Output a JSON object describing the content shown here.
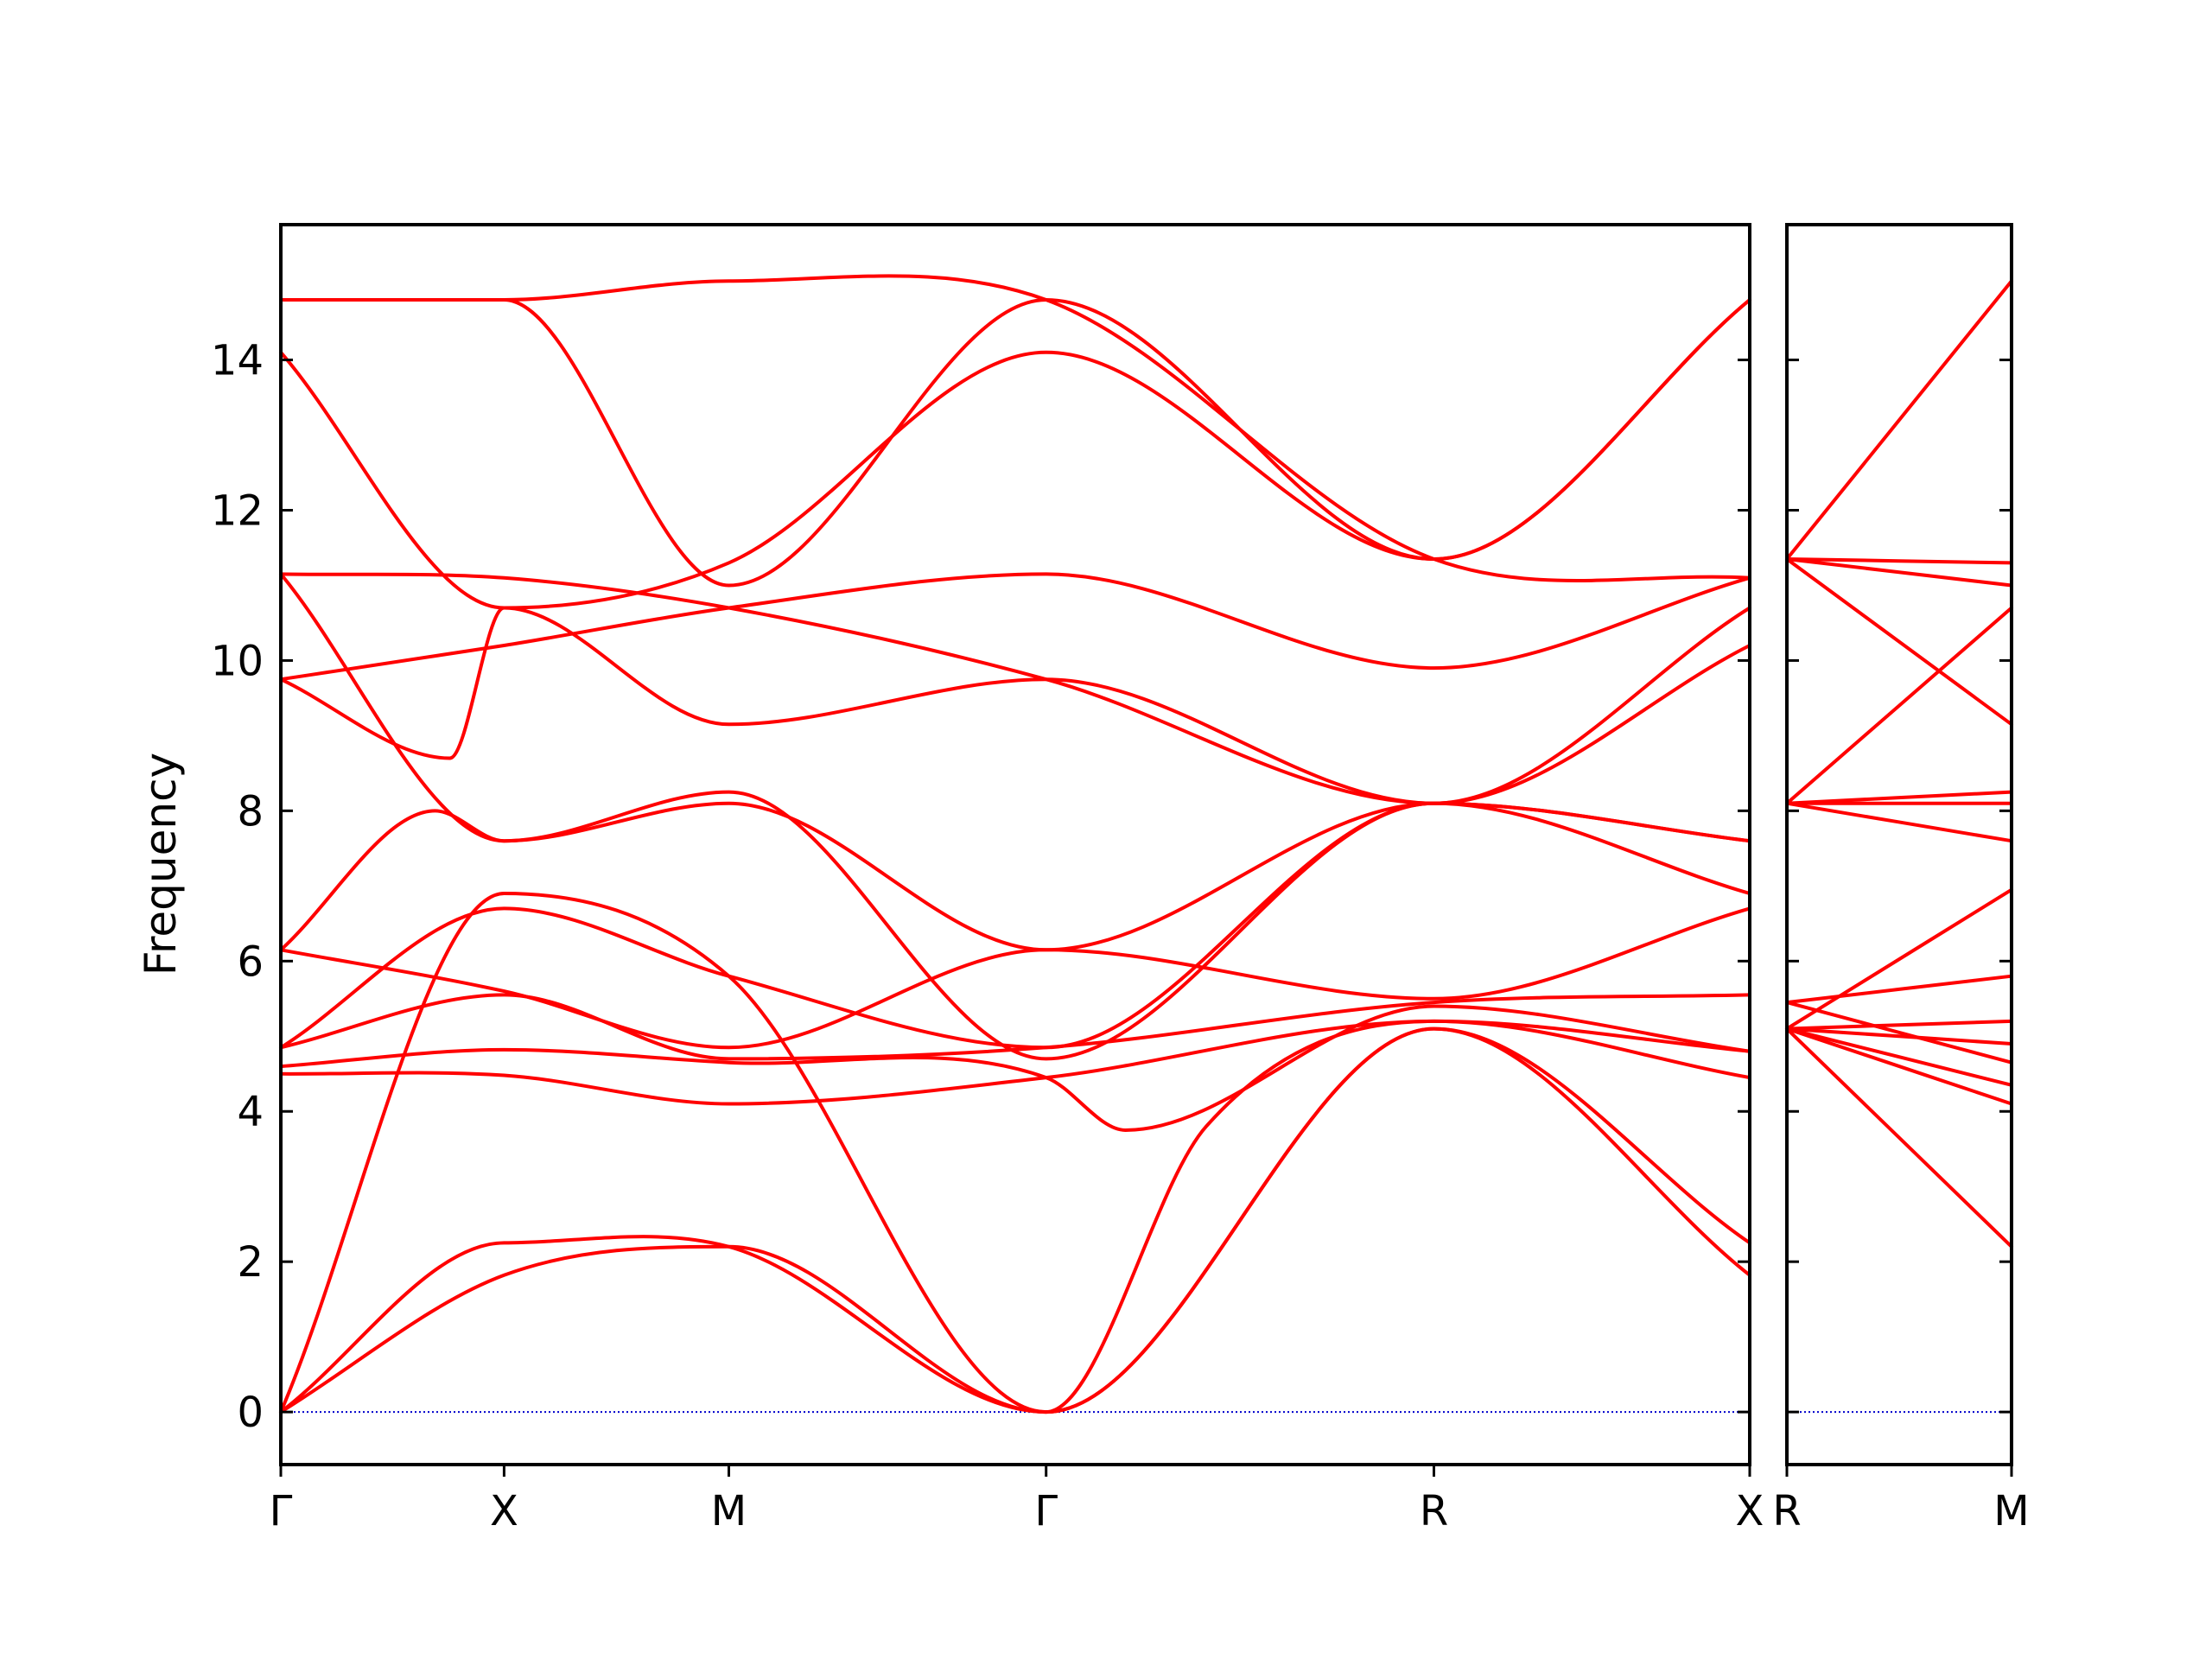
{
  "chart_data": {
    "type": "line",
    "title": "",
    "xlabel": "",
    "ylabel": "Frequency",
    "ylim": [
      -0.7,
      15.8
    ],
    "yticks": [
      0,
      2,
      4,
      6,
      8,
      10,
      12,
      14
    ],
    "grid": false,
    "legend": "none",
    "colors": {
      "band": "#ff0000",
      "zero_line": "#0000cc",
      "frame": "#000000"
    },
    "panels": [
      {
        "x_range": [
          0,
          1.0
        ],
        "high_symmetry_points": [
          {
            "label": "Γ",
            "x": 0.0
          },
          {
            "label": "X",
            "x": 0.152
          },
          {
            "label": "M",
            "x": 0.305
          },
          {
            "label": "Γ",
            "x": 0.521
          },
          {
            "label": "R",
            "x": 0.785
          },
          {
            "label": "X",
            "x": 1.0
          }
        ],
        "series": [
          {
            "x": [
              0,
              0.152,
              0.305,
              0.521,
              0.785,
              1.0
            ],
            "y": [
              0,
              1.82,
              2.2,
              0,
              5.1,
              1.82
            ]
          },
          {
            "x": [
              0,
              0.152,
              0.305,
              0.521,
              0.785,
              1.0
            ],
            "y": [
              0,
              2.25,
              2.2,
              0,
              5.1,
              2.25
            ]
          },
          {
            "x": [
              0,
              0.152,
              0.305,
              0.521,
              0.63,
              0.785,
              1.0
            ],
            "y": [
              0,
              6.9,
              5.8,
              0,
              3.8,
              5.2,
              4.45
            ]
          },
          {
            "x": [
              0,
              0.152,
              0.305,
              0.521,
              0.785,
              1.0
            ],
            "y": [
              4.5,
              4.48,
              4.1,
              4.45,
              5.2,
              4.8
            ]
          },
          {
            "x": [
              0,
              0.152,
              0.305,
              0.521,
              0.575,
              0.785,
              1.0
            ],
            "y": [
              4.6,
              4.82,
              4.65,
              4.45,
              3.75,
              5.4,
              4.8
            ]
          },
          {
            "x": [
              0,
              0.152,
              0.305,
              0.521,
              0.785,
              1.0
            ],
            "y": [
              4.85,
              5.55,
              4.7,
              4.85,
              5.45,
              5.55
            ]
          },
          {
            "x": [
              0,
              0.152,
              0.305,
              0.521,
              0.785,
              1.0
            ],
            "y": [
              4.85,
              6.7,
              5.8,
              4.85,
              8.1,
              6.9
            ]
          },
          {
            "x": [
              0,
              0.152,
              0.305,
              0.521,
              0.785,
              1.0
            ],
            "y": [
              6.15,
              5.6,
              4.85,
              6.15,
              5.5,
              6.7
            ]
          },
          {
            "x": [
              0,
              0.105,
              0.152,
              0.305,
              0.521,
              0.785,
              1.0
            ],
            "y": [
              6.15,
              8.0,
              7.6,
              8.25,
              4.7,
              8.1,
              7.6
            ]
          },
          {
            "x": [
              0,
              0.152,
              0.305,
              0.521,
              0.785,
              1.0
            ],
            "y": [
              11.15,
              7.6,
              8.1,
              6.15,
              8.1,
              7.6
            ]
          },
          {
            "x": [
              0,
              0.115,
              0.152,
              0.305,
              0.521,
              0.785,
              1.0
            ],
            "y": [
              9.75,
              8.7,
              10.7,
              9.15,
              9.75,
              8.1,
              10.2
            ]
          },
          {
            "x": [
              0,
              0.152,
              0.305,
              0.521,
              0.785,
              1.0
            ],
            "y": [
              9.75,
              10.2,
              10.7,
              11.15,
              9.9,
              11.1
            ]
          },
          {
            "x": [
              0,
              0.152,
              0.305,
              0.521,
              0.785,
              1.0
            ],
            "y": [
              11.15,
              11.1,
              10.7,
              9.75,
              8.1,
              10.7
            ]
          },
          {
            "x": [
              0,
              0.152,
              0.305,
              0.521,
              0.785,
              1.0
            ],
            "y": [
              14.1,
              10.7,
              11.3,
              14.1,
              11.35,
              14.8
            ]
          },
          {
            "x": [
              0,
              0.152,
              0.305,
              0.521,
              0.785,
              1.0
            ],
            "y": [
              14.8,
              14.8,
              11.0,
              14.8,
              11.35,
              14.8
            ]
          },
          {
            "x": [
              0,
              0.152,
              0.305,
              0.521,
              0.785,
              1.0
            ],
            "y": [
              14.8,
              14.8,
              15.05,
              14.8,
              11.35,
              11.1
            ]
          }
        ]
      },
      {
        "x_range": [
          0,
          1.0
        ],
        "high_symmetry_points": [
          {
            "label": "R",
            "x": 0.0
          },
          {
            "label": "M",
            "x": 1.0
          }
        ],
        "series": [
          {
            "x": [
              0,
              1.0
            ],
            "y": [
              5.1,
              2.2
            ]
          },
          {
            "x": [
              0,
              1.0
            ],
            "y": [
              5.1,
              4.1
            ]
          },
          {
            "x": [
              0,
              1.0
            ],
            "y": [
              5.1,
              4.35
            ]
          },
          {
            "x": [
              0,
              1.0
            ],
            "y": [
              5.45,
              4.65
            ]
          },
          {
            "x": [
              0,
              1.0
            ],
            "y": [
              5.1,
              4.9
            ]
          },
          {
            "x": [
              0,
              1.0
            ],
            "y": [
              5.1,
              5.2
            ]
          },
          {
            "x": [
              0,
              1.0
            ],
            "y": [
              5.45,
              5.8
            ]
          },
          {
            "x": [
              0,
              1.0
            ],
            "y": [
              5.1,
              6.95
            ]
          },
          {
            "x": [
              0,
              1.0
            ],
            "y": [
              8.1,
              7.6
            ]
          },
          {
            "x": [
              0,
              1.0
            ],
            "y": [
              8.1,
              8.1
            ]
          },
          {
            "x": [
              0,
              1.0
            ],
            "y": [
              8.1,
              8.25
            ]
          },
          {
            "x": [
              0,
              1.0
            ],
            "y": [
              11.35,
              9.15
            ]
          },
          {
            "x": [
              0,
              1.0
            ],
            "y": [
              8.1,
              10.7
            ]
          },
          {
            "x": [
              0,
              1.0
            ],
            "y": [
              11.35,
              11.0
            ]
          },
          {
            "x": [
              0,
              1.0
            ],
            "y": [
              11.35,
              11.3
            ]
          },
          {
            "x": [
              0,
              1.0
            ],
            "y": [
              11.35,
              15.05
            ]
          }
        ]
      }
    ]
  }
}
